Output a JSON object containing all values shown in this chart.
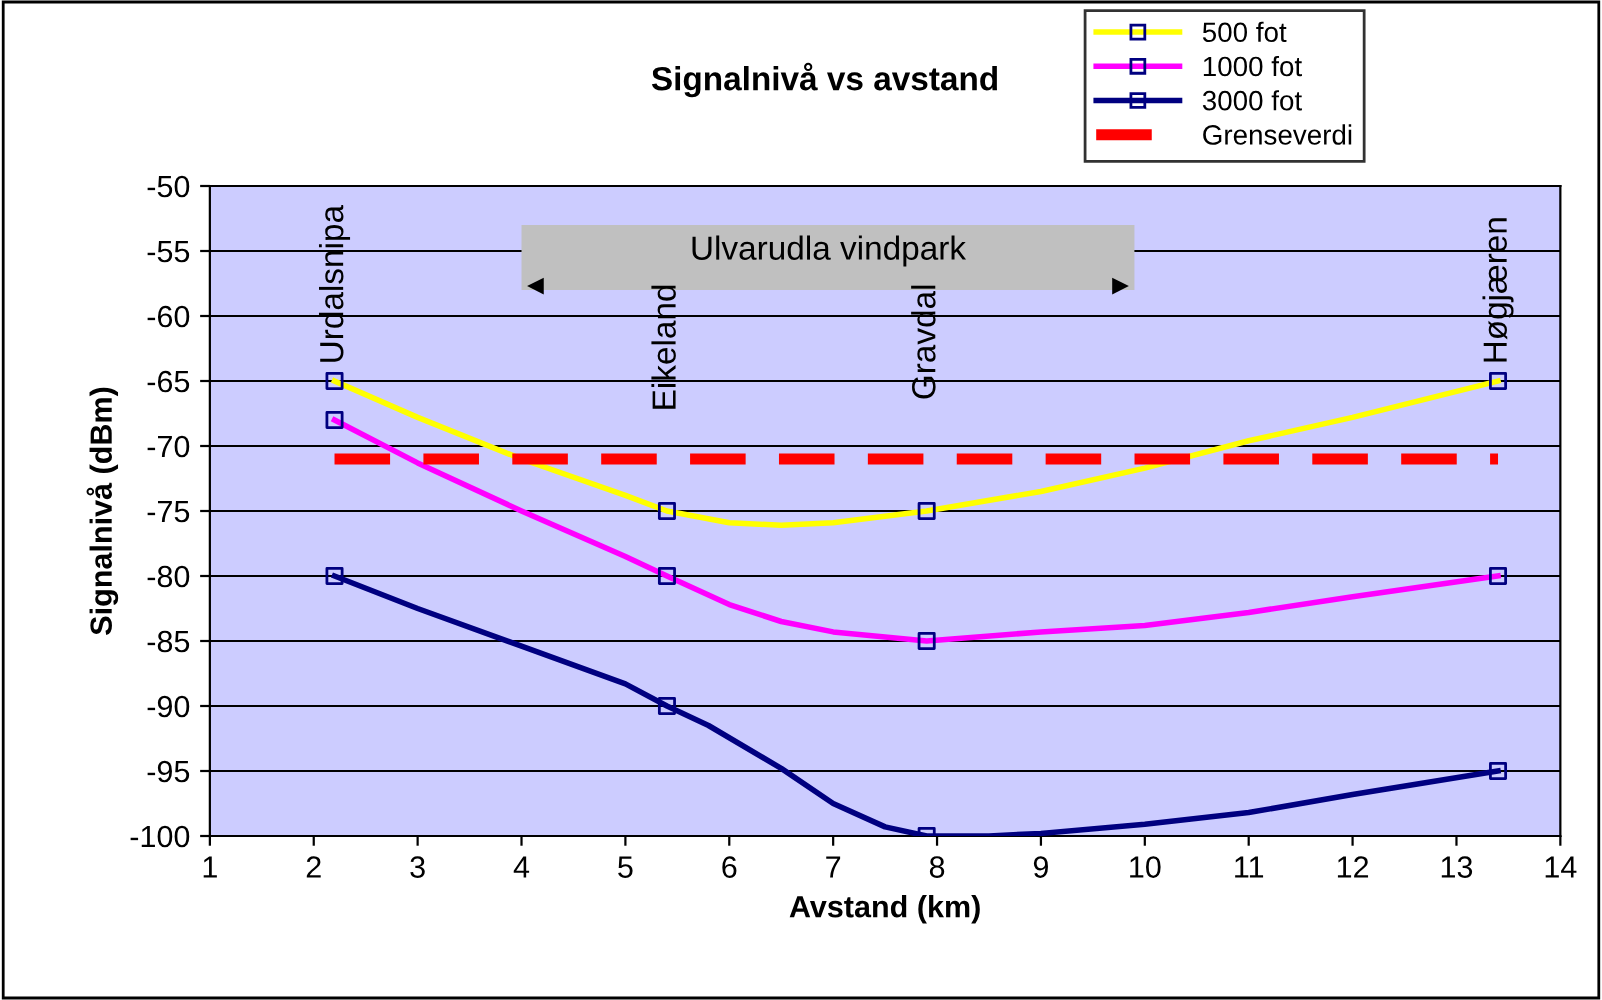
{
  "chart_data": {
    "type": "line",
    "title": "Signalnivå vs avstand",
    "xlabel": "Avstand (km)",
    "ylabel": "Signalnivå (dBm)",
    "xlim": [
      1,
      14
    ],
    "xticks": [
      1,
      2,
      3,
      4,
      5,
      6,
      7,
      8,
      9,
      10,
      11,
      12,
      13,
      14
    ],
    "ylim": [
      -100,
      -50
    ],
    "yticks": [
      -100,
      -95,
      -90,
      -85,
      -80,
      -75,
      -70,
      -65,
      -60,
      -55,
      -50
    ],
    "grid": "y",
    "legend": "top right",
    "line_style": "solid",
    "series": [
      {
        "name": "500 fot",
        "color": "#ffff00",
        "x": [
          2.2,
          3,
          4,
          5,
          5.4,
          6,
          6.5,
          7,
          7.9,
          9,
          10,
          11,
          12,
          13.4
        ],
        "values": [
          -65,
          -67.8,
          -71,
          -73.8,
          -75,
          -75.9,
          -76.1,
          -75.9,
          -75,
          -73.5,
          -71.7,
          -69.6,
          -67.8,
          -65
        ]
      },
      {
        "name": "1000 fot",
        "color": "#ff00ff",
        "x": [
          2.2,
          3,
          4,
          5,
          5.4,
          6,
          6.5,
          7,
          7.9,
          9,
          10,
          11,
          12,
          13.4
        ],
        "values": [
          -68,
          -71.3,
          -75,
          -78.5,
          -80,
          -82.2,
          -83.5,
          -84.3,
          -85,
          -84.3,
          -83.8,
          -82.8,
          -81.6,
          -80
        ]
      },
      {
        "name": "3000 fot",
        "color": "#000080",
        "x": [
          2.2,
          3,
          4,
          5,
          5.4,
          5.8,
          6.5,
          7,
          7.5,
          7.9,
          8.5,
          9,
          10,
          11,
          12,
          13.4
        ],
        "values": [
          -80,
          -82.5,
          -85.4,
          -88.3,
          -90,
          -91.5,
          -94.8,
          -97.5,
          -99.3,
          -100,
          -100,
          -99.8,
          -99.1,
          -98.2,
          -96.8,
          -95
        ]
      },
      {
        "name": "Grenseverdi",
        "color": "#ff0000",
        "x": [
          2.2,
          13.4
        ],
        "values": [
          -71,
          -71
        ],
        "marker": "none",
        "line_style": "dashed"
      },
      {
        "type": "scatter",
        "color": "#000080",
        "marker": "square",
        "x": [
          2.2,
          5.4,
          7.9,
          13.4
        ],
        "values": [
          -65,
          -75,
          -75,
          -65
        ]
      },
      {
        "type": "scatter",
        "color": "#000080",
        "marker": "square",
        "x": [
          2.2,
          5.4,
          7.9,
          13.4
        ],
        "values": [
          -68,
          -80,
          -85,
          -80
        ]
      },
      {
        "type": "scatter",
        "color": "#000080",
        "marker": "square",
        "x": [
          2.2,
          5.4,
          7.9,
          13.4
        ],
        "values": [
          -80,
          -90,
          -100,
          -95
        ]
      }
    ],
    "bands": [
      {
        "axis": "x",
        "from": 4,
        "to": 9.9,
        "label": "Ulvarudla vindpark",
        "color": "#c0c0c0"
      }
    ],
    "annotations": [
      {
        "text": "Urdalsnipa",
        "x": 2.2,
        "y": -65
      },
      {
        "text": "Eikeland",
        "x": 5.4,
        "y": -57.5
      },
      {
        "text": "Gravdal",
        "x": 7.9,
        "y": -57.5
      },
      {
        "text": "Høgjæren",
        "x": 13.4,
        "y": -65
      }
    ]
  }
}
